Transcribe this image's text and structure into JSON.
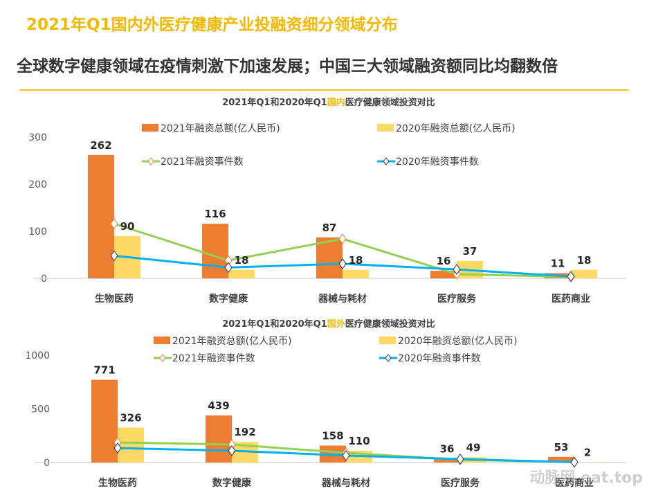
{
  "header": {
    "title": "2021年Q1国内外医疗健康产业投融资细分领域分布",
    "subtitle": "全球数字健康领域在疫情刺激下加速发展；中国三大领域融资额同比均翻数倍"
  },
  "watermark": "动脉网 eat.top",
  "colors": {
    "bar2021": "#ed7d31",
    "bar2020": "#ffd966",
    "line2021": "#92d050",
    "line2020": "#00b0f0",
    "accent": "#f5b800"
  },
  "chart_data": [
    {
      "type": "bar+line",
      "title_pre": "2021年Q1和2020年Q1",
      "title_hl": "国内",
      "title_post": "医疗健康领域投资对比",
      "categories": [
        "生物医药",
        "数字健康",
        "器械与耗材",
        "医疗服务",
        "医药商业"
      ],
      "ylim": [
        0,
        300
      ],
      "yticks": [
        "0",
        "100",
        "200",
        "300"
      ],
      "grid": false,
      "legend": "top",
      "series": [
        {
          "name": "2021年融资总额(亿人民币)",
          "kind": "bar",
          "values": [
            262,
            116,
            87,
            16,
            11
          ]
        },
        {
          "name": "2020年融资总额(亿人民币)",
          "kind": "bar",
          "values": [
            90,
            18,
            18,
            37,
            18
          ]
        },
        {
          "name": "2021年融资事件数",
          "kind": "line",
          "values": [
            116,
            38,
            84,
            9,
            3
          ]
        },
        {
          "name": "2020年融资事件数",
          "kind": "line",
          "values": [
            48,
            23,
            31,
            19,
            4
          ]
        }
      ]
    },
    {
      "type": "bar+line",
      "title_pre": "2021年Q1和2020年Q1",
      "title_hl": "国外",
      "title_post": "医疗健康领域投资对比",
      "categories": [
        "生物医药",
        "数字健康",
        "器械与耗材",
        "医疗服务",
        "医药商业"
      ],
      "ylim": [
        0,
        1000
      ],
      "yticks": [
        "0",
        "500",
        "1000"
      ],
      "grid": false,
      "legend": "top",
      "series": [
        {
          "name": "2021年融资总额(亿人民币)",
          "kind": "bar",
          "values": [
            771,
            439,
            158,
            36,
            53
          ]
        },
        {
          "name": "2020年融资总额(亿人民币)",
          "kind": "bar",
          "values": [
            326,
            192,
            110,
            49,
            2
          ]
        },
        {
          "name": "2021年融资事件数",
          "kind": "line",
          "values": [
            187,
            168,
            90,
            26,
            4
          ]
        },
        {
          "name": "2020年融资事件数",
          "kind": "line",
          "values": [
            135,
            110,
            65,
            32,
            3
          ]
        }
      ]
    }
  ]
}
